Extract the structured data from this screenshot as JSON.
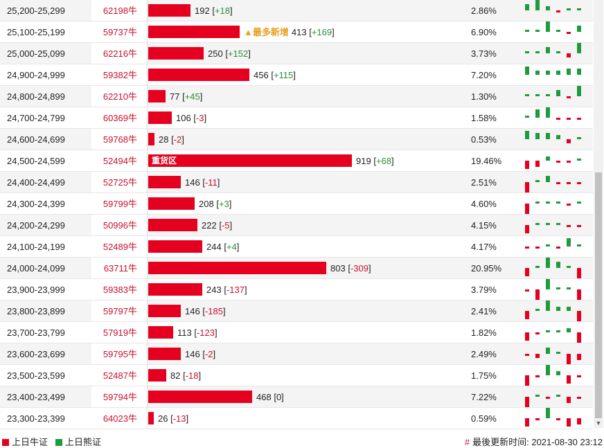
{
  "rows": [
    {
      "range": "25,200-25,299",
      "code": "62198牛",
      "value": 192,
      "change": "+18",
      "pct": "2.86%",
      "tag": "",
      "bar_label": "",
      "spark": [
        3,
        5,
        2,
        -1,
        1,
        1
      ]
    },
    {
      "range": "25,100-25,199",
      "code": "59737牛",
      "value": 413,
      "change": "+169",
      "pct": "6.90%",
      "tag": "▲最多新增",
      "bar_label": "",
      "spark": [
        1,
        1,
        5,
        1,
        -1,
        3
      ]
    },
    {
      "range": "25,000-25,099",
      "code": "62216牛",
      "value": 250,
      "change": "+152",
      "pct": "3.73%",
      "tag": "",
      "bar_label": "",
      "spark": [
        1,
        1,
        3,
        1,
        -2,
        5
      ]
    },
    {
      "range": "24,900-24,999",
      "code": "59382牛",
      "value": 456,
      "change": "+115",
      "pct": "7.20%",
      "tag": "",
      "bar_label": "",
      "spark": [
        4,
        2,
        2,
        2,
        3,
        3
      ]
    },
    {
      "range": "24,800-24,899",
      "code": "62210牛",
      "value": 77,
      "change": "+45",
      "pct": "1.30%",
      "tag": "",
      "bar_label": "",
      "spark": [
        1,
        1,
        1,
        3,
        -1,
        5
      ]
    },
    {
      "range": "24,700-24,799",
      "code": "60369牛",
      "value": 106,
      "change": "-3",
      "pct": "1.58%",
      "tag": "",
      "bar_label": "",
      "spark": [
        1,
        4,
        5,
        -1,
        -1,
        -1
      ]
    },
    {
      "range": "24,600-24,699",
      "code": "59768牛",
      "value": 28,
      "change": "-2",
      "pct": "0.53%",
      "tag": "",
      "bar_label": "",
      "spark": [
        4,
        3,
        3,
        2,
        -2,
        1
      ]
    },
    {
      "range": "24,500-24,599",
      "code": "52494牛",
      "value": 919,
      "change": "+68",
      "pct": "19.46%",
      "tag": "",
      "bar_label": "重货区",
      "spark": [
        -4,
        -3,
        2,
        -1,
        -1,
        1
      ]
    },
    {
      "range": "24,400-24,499",
      "code": "52725牛",
      "value": 146,
      "change": "-11",
      "pct": "2.51%",
      "tag": "",
      "bar_label": "",
      "spark": [
        -5,
        1,
        3,
        -1,
        -1,
        -1
      ]
    },
    {
      "range": "24,300-24,399",
      "code": "59799牛",
      "value": 208,
      "change": "+3",
      "pct": "4.60%",
      "tag": "",
      "bar_label": "",
      "spark": [
        -5,
        1,
        1,
        1,
        -1,
        1
      ]
    },
    {
      "range": "24,200-24,299",
      "code": "50996牛",
      "value": 222,
      "change": "-5",
      "pct": "4.15%",
      "tag": "",
      "bar_label": "",
      "spark": [
        -4,
        1,
        1,
        1,
        -1,
        -1
      ]
    },
    {
      "range": "24,100-24,199",
      "code": "52489牛",
      "value": 244,
      "change": "+4",
      "pct": "4.17%",
      "tag": "",
      "bar_label": "",
      "spark": [
        -1,
        -1,
        1,
        -1,
        4,
        1
      ]
    },
    {
      "range": "24,000-24,099",
      "code": "63711牛",
      "value": 803,
      "change": "-309",
      "pct": "20.95%",
      "tag": "",
      "bar_label": "",
      "spark": [
        -4,
        1,
        5,
        3,
        1,
        -5
      ]
    },
    {
      "range": "23,900-23,999",
      "code": "59383牛",
      "value": 243,
      "change": "-137",
      "pct": "3.79%",
      "tag": "",
      "bar_label": "",
      "spark": [
        -1,
        -5,
        5,
        1,
        1,
        -5
      ]
    },
    {
      "range": "23,800-23,899",
      "code": "59797牛",
      "value": 146,
      "change": "-185",
      "pct": "2.41%",
      "tag": "",
      "bar_label": "",
      "spark": [
        -4,
        1,
        5,
        2,
        2,
        -5
      ]
    },
    {
      "range": "23,700-23,799",
      "code": "57919牛",
      "value": 113,
      "change": "-123",
      "pct": "1.82%",
      "tag": "",
      "bar_label": "",
      "spark": [
        -4,
        -1,
        1,
        1,
        2,
        -5
      ]
    },
    {
      "range": "23,600-23,699",
      "code": "59795牛",
      "value": 146,
      "change": "-2",
      "pct": "2.49%",
      "tag": "",
      "bar_label": "",
      "spark": [
        -1,
        -2,
        3,
        1,
        -5,
        -3
      ]
    },
    {
      "range": "23,500-23,599",
      "code": "52487牛",
      "value": 82,
      "change": "-18",
      "pct": "1.75%",
      "tag": "",
      "bar_label": "",
      "spark": [
        -5,
        -1,
        5,
        2,
        -4,
        -1
      ]
    },
    {
      "range": "23,400-23,499",
      "code": "59794牛",
      "value": 468,
      "change": "0",
      "pct": "7.22%",
      "tag": "",
      "bar_label": "",
      "spark": [
        -5,
        1,
        -1,
        1,
        -3,
        -1
      ]
    },
    {
      "range": "23,300-23,399",
      "code": "64023牛",
      "value": 26,
      "change": "-13",
      "pct": "0.59%",
      "tag": "",
      "bar_label": "",
      "spark": [
        -4,
        -1,
        5,
        -1,
        -4,
        -3
      ]
    }
  ],
  "legend": {
    "bull": "上日牛证",
    "bear": "上日熊证",
    "bull_color": "#e4001e",
    "bear_color": "#1e9b3c"
  },
  "update": {
    "prefix": "#",
    "text": "最後更新时间: 2021-08-30 23:12"
  }
}
